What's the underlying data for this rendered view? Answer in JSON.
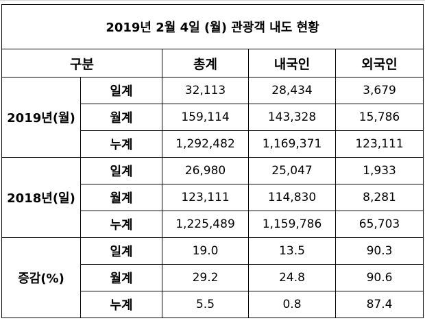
{
  "header": {
    "title": "2019년 2월 4일 (월) 관광객 내도 현황"
  },
  "table": {
    "columns": [
      "구분",
      "총계",
      "내국인",
      "외국인"
    ],
    "groups": [
      {
        "label": "2019년(월)",
        "rows": [
          {
            "label": "일계",
            "values": [
              "32,113",
              "28,434",
              "3,679"
            ]
          },
          {
            "label": "월계",
            "values": [
              "159,114",
              "143,328",
              "15,786"
            ]
          },
          {
            "label": "누계",
            "values": [
              "1,292,482",
              "1,169,371",
              "123,111"
            ]
          }
        ]
      },
      {
        "label": "2018년(일)",
        "rows": [
          {
            "label": "일계",
            "values": [
              "26,980",
              "25,047",
              "1,933"
            ]
          },
          {
            "label": "월계",
            "values": [
              "123,111",
              "114,830",
              "8,281"
            ]
          },
          {
            "label": "누계",
            "values": [
              "1,225,489",
              "1,159,786",
              "65,703"
            ]
          }
        ]
      },
      {
        "label": "증감(%)",
        "rows": [
          {
            "label": "일계",
            "values": [
              "19.0",
              "13.5",
              "90.3"
            ]
          },
          {
            "label": "월계",
            "values": [
              "29.2",
              "24.8",
              "90.6"
            ]
          },
          {
            "label": "누계",
            "values": [
              "5.5",
              "0.8",
              "87.4"
            ]
          }
        ]
      }
    ]
  }
}
